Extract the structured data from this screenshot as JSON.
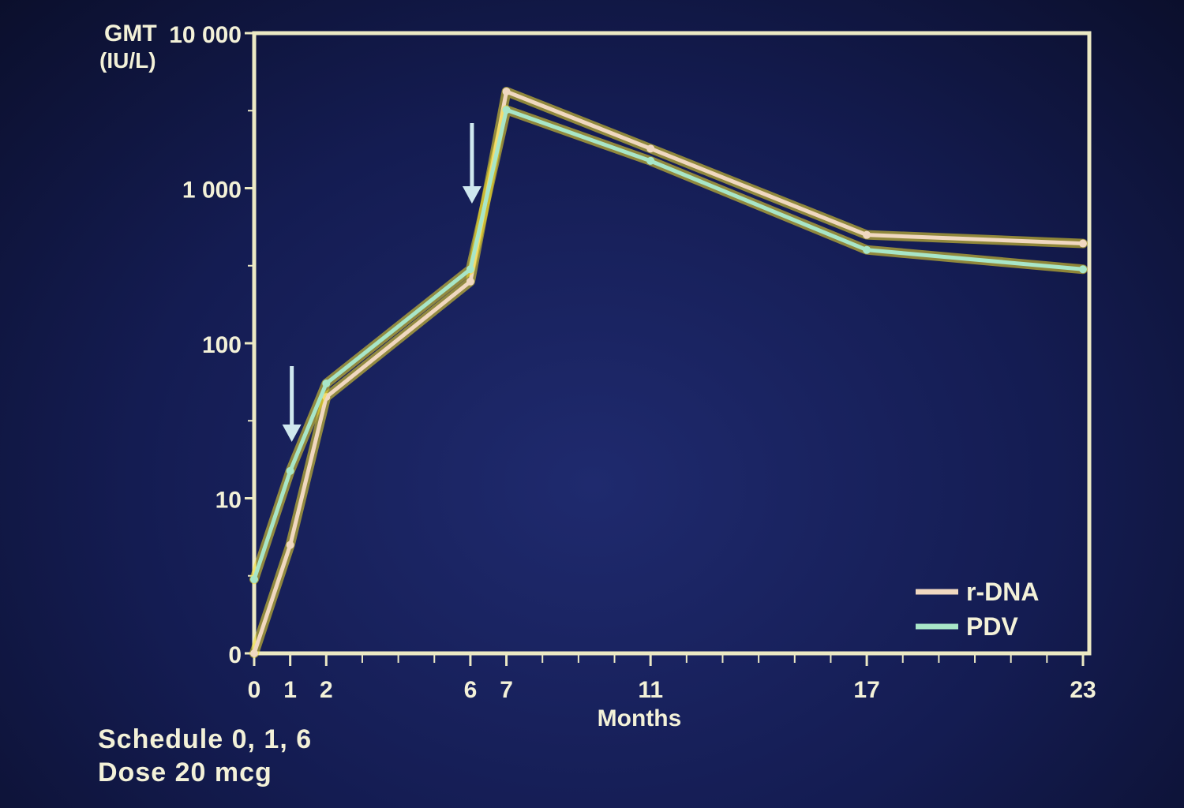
{
  "chart_data": {
    "type": "line",
    "y_label_line1": "GMT",
    "y_label_line2": "(IU/L)",
    "xlabel": "Months",
    "y_scale": "log",
    "ylim": [
      1,
      10000
    ],
    "xlim": [
      0,
      23
    ],
    "x_tick_labels": [
      "0",
      "1",
      "2",
      "6",
      "7",
      "11",
      "17",
      "23"
    ],
    "x_tick_values": [
      0,
      1,
      2,
      6,
      7,
      11,
      17,
      23
    ],
    "y_tick_labels": [
      "10 000",
      "1 000",
      "100",
      "10",
      "0"
    ],
    "y_tick_values": [
      10000,
      1000,
      100,
      10,
      1
    ],
    "dose_arrows_at_months": [
      1,
      6
    ],
    "highlight_color": "#f5e02a",
    "frame_color": "#ece9c4",
    "series": [
      {
        "name": "r-DNA",
        "color": "#f0d8c0",
        "x": [
          0,
          1,
          2,
          6,
          7,
          11,
          17,
          23
        ],
        "y": [
          1,
          5,
          45,
          250,
          4200,
          1800,
          500,
          440
        ]
      },
      {
        "name": "PDV",
        "color": "#a8e6c8",
        "x": [
          0,
          1,
          2,
          6,
          7,
          11,
          17,
          23
        ],
        "y": [
          3,
          15,
          55,
          300,
          3200,
          1500,
          400,
          300
        ]
      }
    ]
  },
  "notes": {
    "schedule": "Schedule 0, 1, 6",
    "dose": "Dose 20 mcg"
  }
}
